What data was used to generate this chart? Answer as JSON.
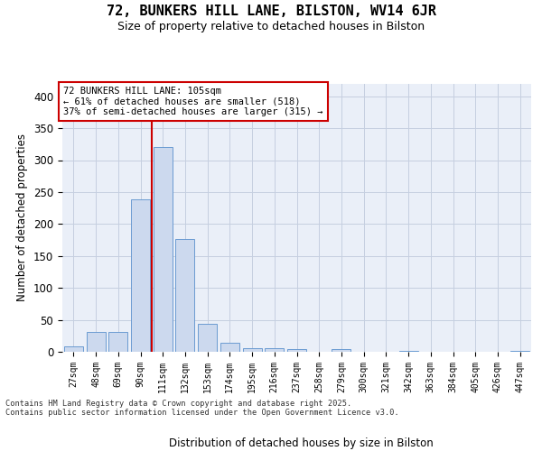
{
  "title1": "72, BUNKERS HILL LANE, BILSTON, WV14 6JR",
  "title2": "Size of property relative to detached houses in Bilston",
  "xlabel": "Distribution of detached houses by size in Bilston",
  "ylabel": "Number of detached properties",
  "annotation_line1": "72 BUNKERS HILL LANE: 105sqm",
  "annotation_line2": "← 61% of detached houses are smaller (518)",
  "annotation_line3": "37% of semi-detached houses are larger (315) →",
  "bar_color": "#ccd9ee",
  "bar_edge_color": "#6b9bd2",
  "grid_color": "#c5cfe0",
  "bg_color": "#eaeff8",
  "vline_color": "#cc0000",
  "annotation_edge_color": "#cc0000",
  "categories": [
    "27sqm",
    "48sqm",
    "69sqm",
    "90sqm",
    "111sqm",
    "132sqm",
    "153sqm",
    "174sqm",
    "195sqm",
    "216sqm",
    "237sqm",
    "258sqm",
    "279sqm",
    "300sqm",
    "321sqm",
    "342sqm",
    "363sqm",
    "384sqm",
    "405sqm",
    "426sqm",
    "447sqm"
  ],
  "values": [
    8,
    31,
    31,
    238,
    320,
    176,
    44,
    14,
    6,
    6,
    4,
    0,
    4,
    0,
    0,
    2,
    0,
    0,
    0,
    0,
    2
  ],
  "vline_x": 3.5,
  "ylim_max": 420,
  "yticks": [
    0,
    50,
    100,
    150,
    200,
    250,
    300,
    350,
    400
  ],
  "footer1": "Contains HM Land Registry data © Crown copyright and database right 2025.",
  "footer2": "Contains public sector information licensed under the Open Government Licence v3.0."
}
